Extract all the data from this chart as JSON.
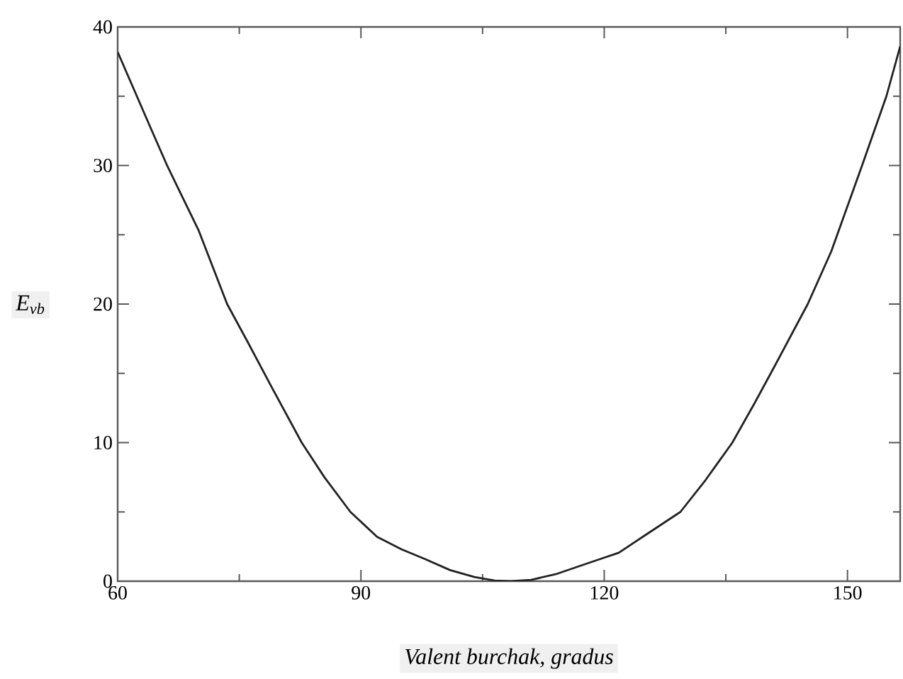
{
  "chart_data": {
    "type": "line",
    "xlabel": "Valent burchak, gradus",
    "ylabel": "E$_{vb}$",
    "x": [
      60,
      62,
      64,
      66.1,
      68,
      70,
      73.5,
      76,
      79,
      82.7,
      85.5,
      88.7,
      92,
      95,
      97.9,
      101,
      104,
      106.5,
      108.5,
      111,
      114,
      117,
      119.5,
      121.8,
      125,
      129.4,
      132.5,
      135.8,
      138.5,
      141,
      145.1,
      148,
      151.8,
      154.8,
      156.5
    ],
    "series": [
      {
        "color": "#222222",
        "values": [
          38.2,
          35.5,
          32.8,
          30,
          27.7,
          25.3,
          20,
          17.3,
          14,
          10,
          7.5,
          5,
          3.2,
          2.3,
          1.6,
          0.8,
          0.3,
          0.05,
          0,
          0.1,
          0.5,
          1.1,
          1.6,
          2.05,
          3.3,
          5,
          7.3,
          10,
          12.8,
          15.5,
          20,
          23.8,
          30,
          35,
          38.6
        ]
      }
    ],
    "xlim": [
      60,
      156.5
    ],
    "ylim": [
      0,
      40
    ],
    "xticks": [
      60,
      90,
      120,
      150
    ],
    "yticks": [
      0,
      10,
      20,
      30,
      40
    ]
  }
}
